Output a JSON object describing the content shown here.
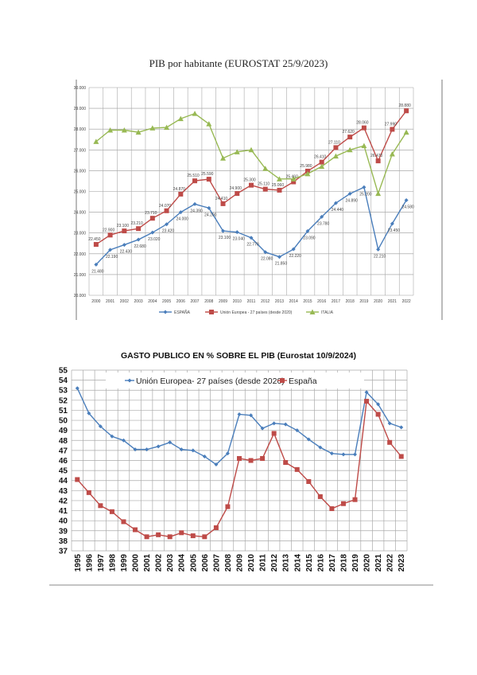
{
  "chart_data": [
    {
      "type": "line",
      "title": "PIB por habitante (EUROSTAT 25/9/2023)",
      "x": [
        "2000",
        "2001",
        "2002",
        "2003",
        "2004",
        "2005",
        "2006",
        "2007",
        "2008",
        "2009",
        "2010",
        "2011",
        "2012",
        "2013",
        "2014",
        "2015",
        "2016",
        "2017",
        "2018",
        "2019",
        "2020",
        "2021",
        "2022"
      ],
      "ylim": [
        20000,
        30000
      ],
      "yticks": [
        "20.000",
        "21.000",
        "22.000",
        "23.000",
        "24.000",
        "25.000",
        "26.000",
        "27.000",
        "28.000",
        "29.000",
        "30.000"
      ],
      "grid": true,
      "legend": "bottom",
      "series": [
        {
          "name": "ESPAÑA",
          "color": "#4a7ebb",
          "marker": "diamond",
          "labels": true,
          "values": [
            21480,
            22190,
            22430,
            22680,
            23020,
            23420,
            24000,
            24390,
            24200,
            23100,
            23040,
            22770,
            22080,
            21850,
            22220,
            23090,
            23780,
            24440,
            24890,
            25200,
            22210,
            23450,
            24580
          ]
        },
        {
          "name": "Unión Europea - 27 países (desde 2020)",
          "color": "#be4b48",
          "marker": "square",
          "labels": true,
          "values": [
            22450,
            22900,
            23100,
            23210,
            23710,
            24070,
            24870,
            25510,
            25590,
            24410,
            24900,
            25300,
            25110,
            25060,
            25460,
            25980,
            26410,
            27110,
            27620,
            28060,
            26470,
            27990,
            28880
          ]
        },
        {
          "name": "ITALIA",
          "color": "#98b954",
          "marker": "triangle",
          "labels": false,
          "values": [
            27400,
            27950,
            27950,
            27850,
            28050,
            28080,
            28500,
            28750,
            28250,
            26600,
            26900,
            27000,
            26100,
            25600,
            25600,
            25850,
            26200,
            26700,
            27000,
            27200,
            24900,
            26800,
            27850
          ]
        }
      ]
    },
    {
      "type": "line",
      "title": "GASTO PUBLICO EN % SOBRE EL PIB (Eurostat 10/9/2024)",
      "x": [
        "1995",
        "1996",
        "1997",
        "1998",
        "1999",
        "2000",
        "2001",
        "2002",
        "2003",
        "2004",
        "2005",
        "2006",
        "2007",
        "2008",
        "2009",
        "2010",
        "2011",
        "2012",
        "2013",
        "2014",
        "2015",
        "2016",
        "2017",
        "2018",
        "2019",
        "2020",
        "2021",
        "2022",
        "2023"
      ],
      "ylim": [
        37,
        55
      ],
      "yticks": [
        "37",
        "38",
        "39",
        "40",
        "41",
        "42",
        "43",
        "44",
        "45",
        "46",
        "47",
        "48",
        "49",
        "50",
        "51",
        "52",
        "53",
        "54",
        "55"
      ],
      "grid": true,
      "legend": "top",
      "series": [
        {
          "name": "Unión Europea- 27 países (desde 2020)",
          "color": "#4a7ebb",
          "marker": "diamond",
          "values": [
            53.2,
            50.7,
            49.4,
            48.4,
            48.0,
            47.1,
            47.1,
            47.4,
            47.8,
            47.1,
            47.0,
            46.4,
            45.6,
            46.7,
            50.6,
            50.5,
            49.2,
            49.7,
            49.6,
            49.0,
            48.1,
            47.3,
            46.7,
            46.6,
            46.6,
            52.8,
            51.6,
            49.7,
            49.3
          ]
        },
        {
          "name": "España",
          "color": "#be4b48",
          "marker": "square",
          "values": [
            44.1,
            42.8,
            41.5,
            40.9,
            39.9,
            39.1,
            38.4,
            38.6,
            38.4,
            38.8,
            38.5,
            38.4,
            39.3,
            41.4,
            46.2,
            46.0,
            46.2,
            48.7,
            45.8,
            45.1,
            43.9,
            42.4,
            41.2,
            41.7,
            42.1,
            51.9,
            50.6,
            47.8,
            46.4
          ]
        }
      ]
    }
  ]
}
